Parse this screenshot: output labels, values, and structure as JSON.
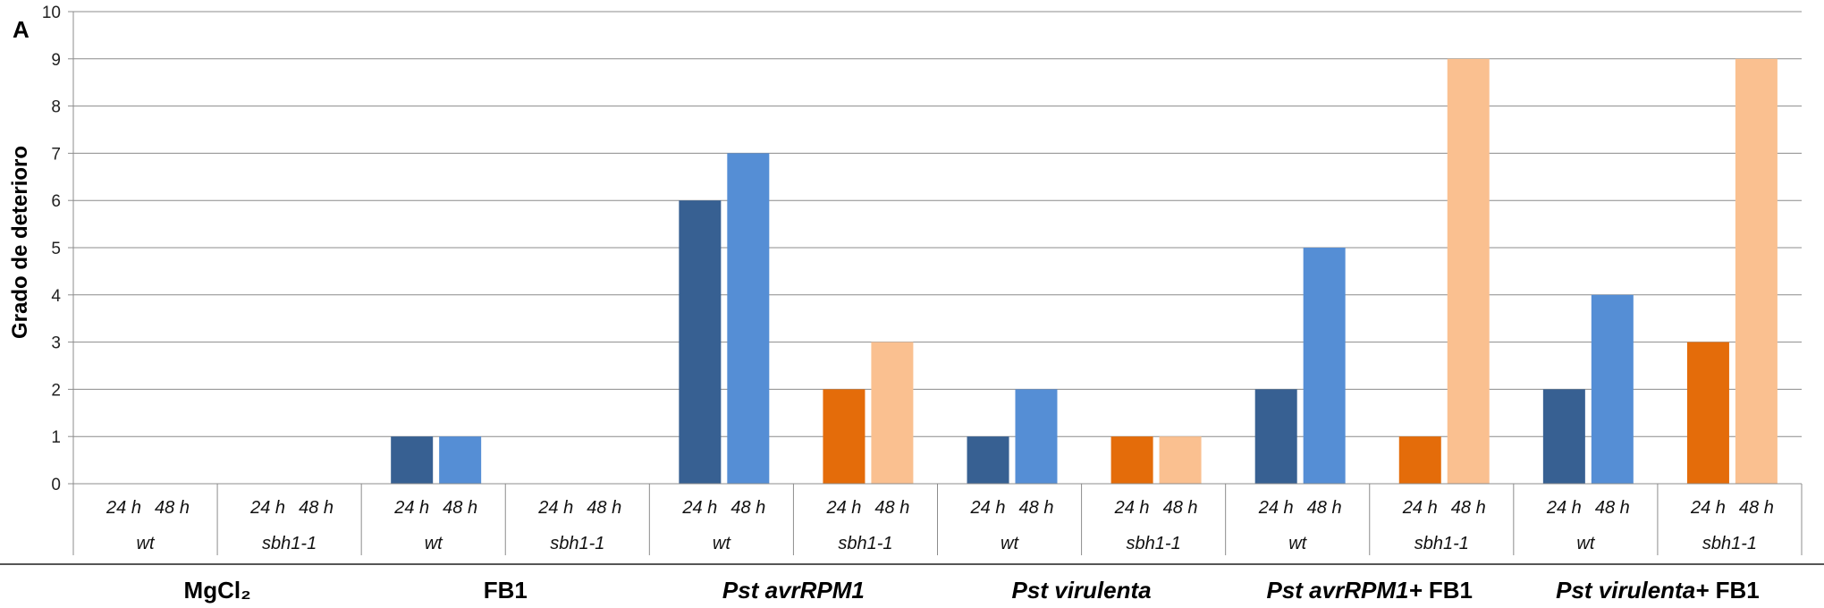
{
  "chart_data": {
    "type": "bar",
    "panel_label": "A",
    "ylabel": "Grado de deterioro",
    "ylim": [
      0,
      10
    ],
    "yticks": [
      0,
      1,
      2,
      3,
      4,
      5,
      6,
      7,
      8,
      9,
      10
    ],
    "grid": true,
    "time_labels": [
      "24 h",
      "48 h"
    ],
    "colors": {
      "wt_24h": "#376092",
      "wt_48h": "#558ED5",
      "sbh1_24h": "#E46C0A",
      "sbh1_48h": "#FAC090"
    },
    "groups": [
      {
        "treatment": "MgCl₂",
        "genotypes": [
          {
            "name": "wt",
            "color_key": "wt",
            "values": [
              0,
              0
            ]
          },
          {
            "name": "sbh1-1",
            "color_key": "sbh1",
            "values": [
              0,
              0
            ]
          }
        ]
      },
      {
        "treatment": "FB1",
        "genotypes": [
          {
            "name": "wt",
            "color_key": "wt",
            "values": [
              1,
              1
            ]
          },
          {
            "name": "sbh1-1",
            "color_key": "sbh1",
            "values": [
              0,
              0
            ]
          }
        ]
      },
      {
        "treatment": "Pst avrRPM1",
        "genotypes": [
          {
            "name": "wt",
            "color_key": "wt",
            "values": [
              6,
              7
            ]
          },
          {
            "name": "sbh1-1",
            "color_key": "sbh1",
            "values": [
              2,
              3
            ]
          }
        ]
      },
      {
        "treatment": "Pst virulenta",
        "genotypes": [
          {
            "name": "wt",
            "color_key": "wt",
            "values": [
              1,
              2
            ]
          },
          {
            "name": "sbh1-1",
            "color_key": "sbh1",
            "values": [
              1,
              1
            ]
          }
        ]
      },
      {
        "treatment": "Pst avrRPM1+ FB1",
        "genotypes": [
          {
            "name": "wt",
            "color_key": "wt",
            "values": [
              2,
              5
            ]
          },
          {
            "name": "sbh1-1",
            "color_key": "sbh1",
            "values": [
              1,
              9
            ]
          }
        ]
      },
      {
        "treatment": "Pst virulenta+ FB1",
        "genotypes": [
          {
            "name": "wt",
            "color_key": "wt",
            "values": [
              2,
              4
            ]
          },
          {
            "name": "sbh1-1",
            "color_key": "sbh1",
            "values": [
              3,
              9
            ]
          }
        ]
      }
    ]
  }
}
